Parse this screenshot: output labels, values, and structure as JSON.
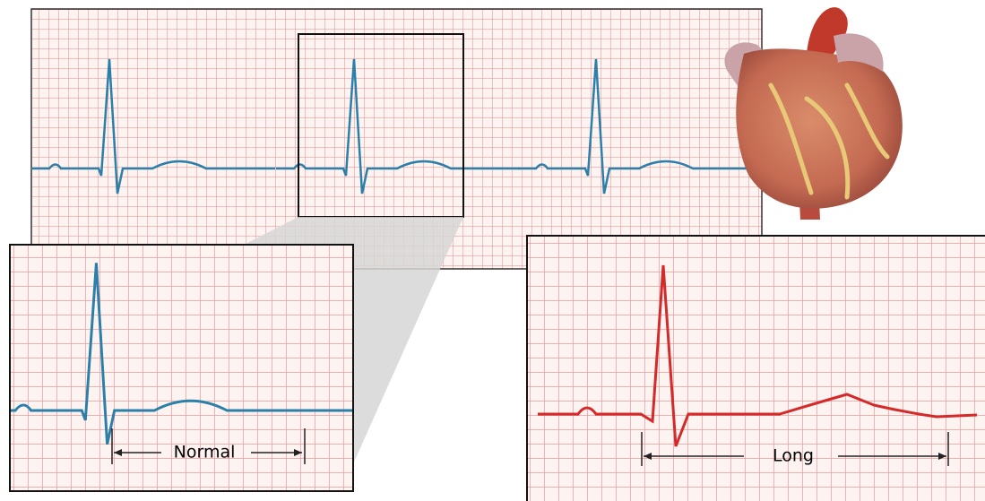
{
  "labels": {
    "normal": "Normal",
    "long": "Long"
  }
}
